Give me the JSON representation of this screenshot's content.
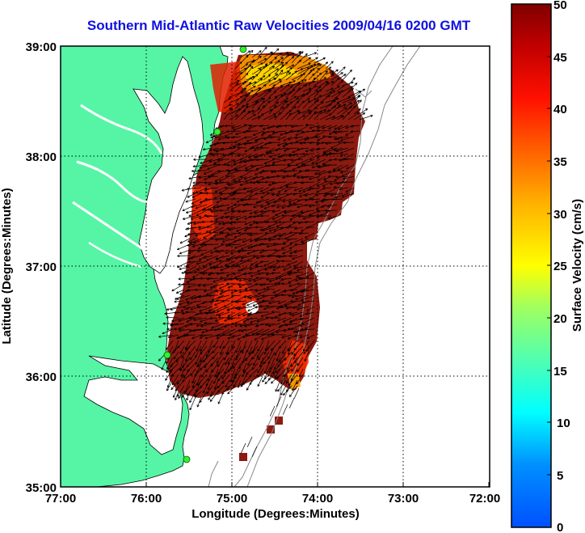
{
  "title": "Southern Mid-Atlantic Raw Velocities 2009/04/16 0200 GMT",
  "x_axis": {
    "label": "Longitude (Degrees:Minutes)",
    "ticks": [
      "77:00",
      "76:00",
      "75:00",
      "74:00",
      "73:00",
      "72:00"
    ],
    "range": [
      -77,
      -72
    ]
  },
  "y_axis": {
    "label": "Latitude (Degrees:Minutes)",
    "ticks": [
      "35:00",
      "36:00",
      "37:00",
      "38:00",
      "39:00"
    ],
    "range": [
      35,
      39
    ]
  },
  "colorbar": {
    "label": "Surface Velocity (cm/s)",
    "ticks": [
      "0",
      "5",
      "10",
      "15",
      "20",
      "25",
      "30",
      "35",
      "40",
      "45",
      "50"
    ],
    "range": [
      0,
      50
    ]
  },
  "colors": {
    "land": "#55f5a5",
    "title": "#1010e0",
    "vector_field_fill": "#8b1a10",
    "arrows": "#000000",
    "stations": "#33ee33"
  },
  "legend": "colorbar-right",
  "grid": true
}
